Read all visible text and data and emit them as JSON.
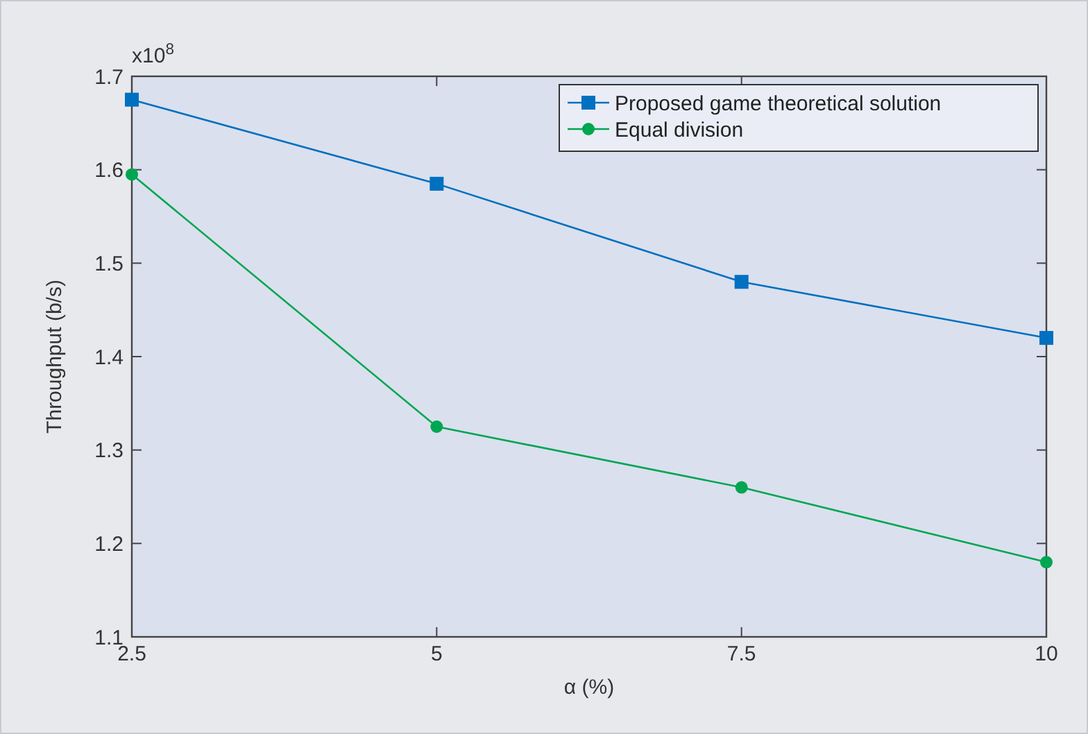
{
  "chart_data": {
    "type": "line",
    "xlabel": "α (%)",
    "ylabel": "Throughput (b/s)",
    "annotations": [
      "x10$^{8}$"
    ],
    "x": [
      2.5,
      5,
      7.5,
      10
    ],
    "series": [
      {
        "name": "Proposed game theoretical solution",
        "color": "#0070c0",
        "marker": "square",
        "values": [
          1.675,
          1.585,
          1.48,
          1.42
        ]
      },
      {
        "name": "Equal division",
        "color": "#00a651",
        "marker": "circle",
        "values": [
          1.595,
          1.325,
          1.26,
          1.18
        ]
      }
    ],
    "xlim": [
      2.5,
      10
    ],
    "xticks": [
      2.5,
      5,
      7.5,
      10
    ],
    "ylim": [
      1.1,
      1.7
    ],
    "yticks": [
      1.1,
      1.2,
      1.3,
      1.4,
      1.5,
      1.6,
      1.7
    ],
    "grid": false,
    "legend": "top right",
    "line_style": "solid"
  }
}
